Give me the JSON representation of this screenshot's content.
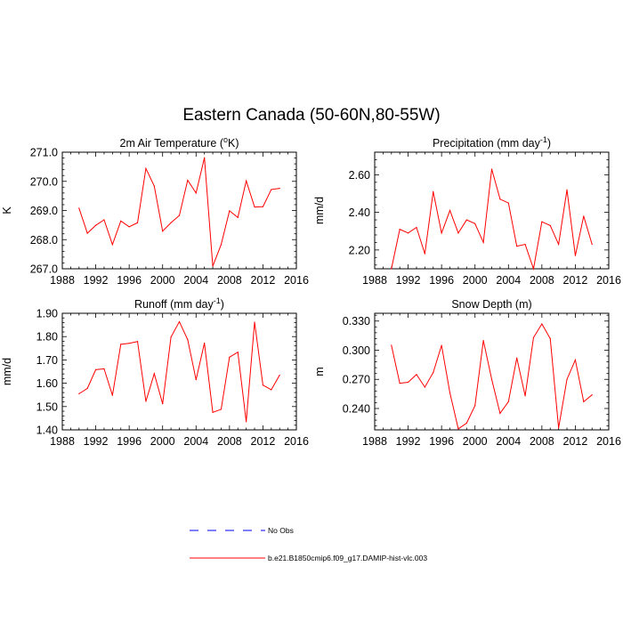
{
  "figure": {
    "title": "Eastern Canada (50-60N,80-55W)"
  },
  "legend": {
    "entries": [
      {
        "label": "No Obs",
        "color": "#0000ff",
        "dash": true
      },
      {
        "label": "b.e21.B1850cmip6.f09_g17.DAMIP-hist-vlc.003",
        "color": "#ff0000",
        "dash": false
      }
    ]
  },
  "chart_data": [
    {
      "type": "line",
      "title": "2m Air Temperature (°K)",
      "ylabel": "K",
      "xlim": [
        1988,
        2016
      ],
      "ylim": [
        267.0,
        271.0
      ],
      "xticks": [
        1988,
        1992,
        1996,
        2000,
        2004,
        2008,
        2012,
        2016
      ],
      "yticks": [
        "267.0",
        "268.0",
        "269.0",
        "270.0",
        "271.0"
      ],
      "x": [
        1990,
        1991,
        1992,
        1993,
        1994,
        1995,
        1996,
        1997,
        1998,
        1999,
        2000,
        2001,
        2002,
        2003,
        2004,
        2005,
        2006,
        2007,
        2008,
        2009,
        2010,
        2011,
        2012,
        2013,
        2014
      ],
      "series": [
        {
          "color": "#ff0000",
          "values": [
            269.08,
            268.22,
            268.49,
            268.68,
            267.83,
            268.64,
            268.44,
            268.58,
            270.44,
            269.84,
            268.29,
            268.58,
            268.83,
            270.04,
            269.6,
            270.81,
            267.09,
            267.83,
            268.99,
            268.76,
            270.02,
            269.12,
            269.13,
            269.72,
            269.76
          ]
        }
      ]
    },
    {
      "type": "line",
      "title": "Precipitation (mm day⁻¹)",
      "ylabel": "mm/d",
      "xlim": [
        1988,
        2016
      ],
      "ylim": [
        2.1,
        2.72
      ],
      "xticks": [
        1988,
        1992,
        1996,
        2000,
        2004,
        2008,
        2012,
        2016
      ],
      "yticks": [
        "2.20",
        "2.40",
        "2.60"
      ],
      "x": [
        1990,
        1991,
        1992,
        1993,
        1994,
        1995,
        1996,
        1997,
        1998,
        1999,
        2000,
        2001,
        2002,
        2003,
        2004,
        2005,
        2006,
        2007,
        2008,
        2009,
        2010,
        2011,
        2012,
        2013,
        2014
      ],
      "series": [
        {
          "color": "#ff0000",
          "values": [
            2.1,
            2.31,
            2.29,
            2.32,
            2.18,
            2.51,
            2.29,
            2.41,
            2.29,
            2.36,
            2.34,
            2.24,
            2.63,
            2.47,
            2.45,
            2.22,
            2.23,
            2.1,
            2.35,
            2.33,
            2.23,
            2.52,
            2.17,
            2.38,
            2.23
          ]
        }
      ]
    },
    {
      "type": "line",
      "title": "Runoff (mm day⁻¹)",
      "ylabel": "mm/d",
      "xlim": [
        1988,
        2016
      ],
      "ylim": [
        1.4,
        1.9
      ],
      "xticks": [
        1988,
        1992,
        1996,
        2000,
        2004,
        2008,
        2012,
        2016
      ],
      "yticks": [
        "1.40",
        "1.50",
        "1.60",
        "1.70",
        "1.80",
        "1.90"
      ],
      "x": [
        1990,
        1991,
        1992,
        1993,
        1994,
        1995,
        1996,
        1997,
        1998,
        1999,
        2000,
        2001,
        2002,
        2003,
        2004,
        2005,
        2006,
        2007,
        2008,
        2009,
        2010,
        2011,
        2012,
        2013,
        2014
      ],
      "series": [
        {
          "color": "#ff0000",
          "values": [
            1.555,
            1.578,
            1.658,
            1.662,
            1.548,
            1.767,
            1.771,
            1.779,
            1.522,
            1.641,
            1.512,
            1.798,
            1.864,
            1.787,
            1.615,
            1.772,
            1.475,
            1.488,
            1.712,
            1.733,
            1.435,
            1.862,
            1.592,
            1.572,
            1.635
          ]
        }
      ]
    },
    {
      "type": "line",
      "title": "Snow Depth (m)",
      "ylabel": "m",
      "xlim": [
        1988,
        2016
      ],
      "ylim": [
        0.218,
        0.338
      ],
      "xticks": [
        1988,
        1992,
        1996,
        2000,
        2004,
        2008,
        2012,
        2016
      ],
      "yticks": [
        "0.240",
        "0.270",
        "0.300",
        "0.330"
      ],
      "x": [
        1990,
        1991,
        1992,
        1993,
        1994,
        1995,
        1996,
        1997,
        1998,
        1999,
        2000,
        2001,
        2002,
        2003,
        2004,
        2005,
        2006,
        2007,
        2008,
        2009,
        2010,
        2011,
        2012,
        2013,
        2014
      ],
      "series": [
        {
          "color": "#ff0000",
          "values": [
            0.305,
            0.266,
            0.267,
            0.275,
            0.262,
            0.277,
            0.305,
            0.256,
            0.219,
            0.225,
            0.243,
            0.31,
            0.27,
            0.235,
            0.247,
            0.292,
            0.253,
            0.313,
            0.327,
            0.312,
            0.22,
            0.27,
            0.29,
            0.247,
            0.254
          ]
        }
      ]
    }
  ]
}
